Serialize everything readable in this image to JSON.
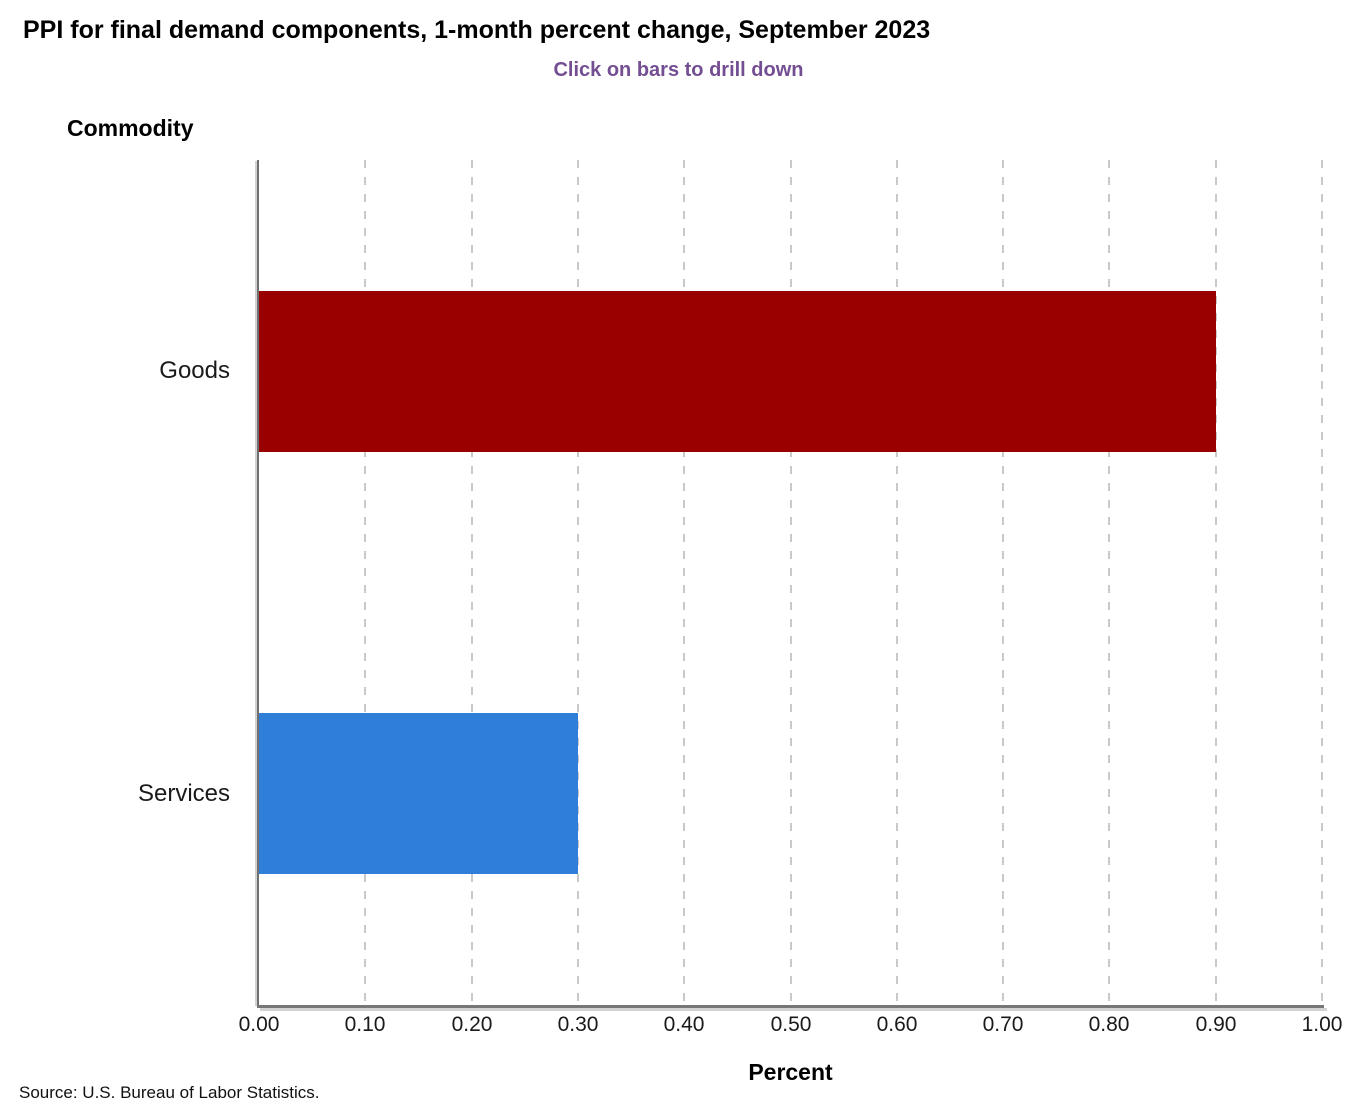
{
  "header": {
    "title": "PPI for final demand components, 1-month percent change, September 2023",
    "subtitle": "Click on bars to drill down",
    "subtitle_color": "#744E92"
  },
  "chart_data": {
    "type": "bar",
    "orientation": "horizontal",
    "title": "PPI for final demand components, 1-month percent change, September 2023",
    "subtitle": "Click on bars to drill down",
    "categories": [
      "Goods",
      "Services"
    ],
    "values": [
      0.9,
      0.3
    ],
    "bar_colors": [
      "#990000",
      "#2F7ED8"
    ],
    "xlabel": "Percent",
    "ylabel": "Commodity",
    "xlim": [
      0,
      1.0
    ],
    "xtick_step": 0.1,
    "xtick_labels": [
      "0.00",
      "0.10",
      "0.20",
      "0.30",
      "0.40",
      "0.50",
      "0.60",
      "0.70",
      "0.80",
      "0.90",
      "1.00"
    ],
    "grid": "vertical-dashed",
    "gridline_color": "#c9c9c9",
    "legend_position": "none",
    "bars_clickable": true
  },
  "footer": {
    "source": "Source: U.S. Bureau of Labor Statistics."
  }
}
